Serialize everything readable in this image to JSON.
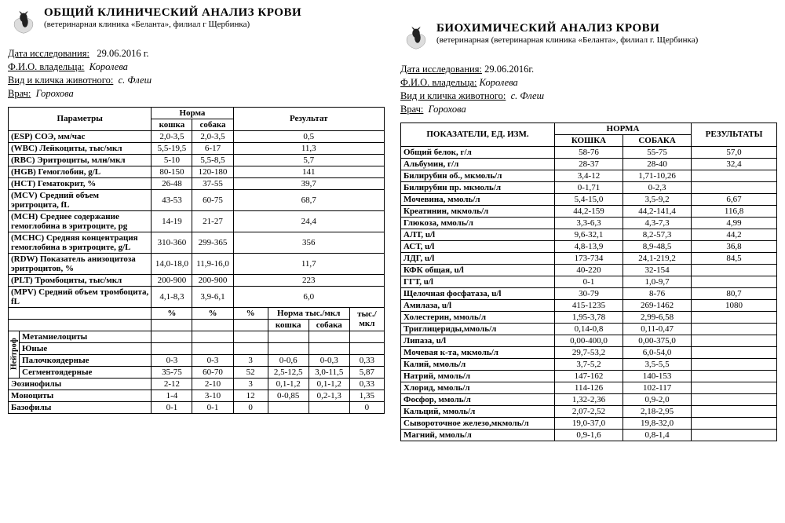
{
  "left": {
    "title": "ОБЩИЙ  КЛИНИЧЕСКИЙ  АНАЛИЗ  КРОВИ",
    "subtitle": "(ветеринарная клиника «Беланта», филиал г Щербинка)",
    "meta": {
      "date_label": "Дата исследования:",
      "date_value": "29.06.2016 г.",
      "owner_label": "Ф.И.О. владельца:",
      "owner_value": "Королева",
      "animal_label": "Вид и кличка животного:",
      "animal_value": "с. Флеш",
      "doctor_label": "Врач:",
      "doctor_value": "Горохова"
    },
    "headers": {
      "params": "Параметры",
      "norm": "Норма",
      "cat": "кошка",
      "dog": "собака",
      "result": "Результат",
      "pct": "%",
      "norm_t": "Норма тыс./мкл",
      "t_mkl": "тыс./мкл"
    },
    "rows": [
      {
        "p": "(ESP) СОЭ, мм/час",
        "c": "2,0-3,5",
        "d": "2,0-3,5",
        "r": "0,5"
      },
      {
        "p": "(WBC) Лейкоциты, тыс/мкл",
        "c": "5,5-19,5",
        "d": "6-17",
        "r": "11,3"
      },
      {
        "p": "(RBC) Эритроциты, млн/мкл",
        "c": "5-10",
        "d": "5,5-8,5",
        "r": "5,7"
      },
      {
        "p": "(HGB) Гемоглобин, g/L",
        "c": "80-150",
        "d": "120-180",
        "r": "141"
      },
      {
        "p": "(HCT) Гематокрит, %",
        "c": "26-48",
        "d": "37-55",
        "r": "39,7"
      },
      {
        "p": "(MCV) Средний объем эритроцита, fL",
        "c": "43-53",
        "d": "60-75",
        "r": "68,7"
      },
      {
        "p": "(MCH) Среднее содержание гемоглобина в эритроците, pg",
        "c": "14-19",
        "d": "21-27",
        "r": "24,4"
      },
      {
        "p": "(MCHC) Средняя концентрация гемоглобина в эритроците, g/L",
        "c": "310-360",
        "d": "299-365",
        "r": "356"
      },
      {
        "p": "(RDW) Показатель анизоцитоза эритроцитов, %",
        "c": "14,0-18,0",
        "d": "11,9-16,0",
        "r": "11,7"
      },
      {
        "p": "(PLT) Тромбоциты, тыс/мкл",
        "c": "200-900",
        "d": "200-900",
        "r": "223"
      },
      {
        "p": "(MPV) Средний объем тромбоцита, fL",
        "c": "4,1-8,3",
        "d": "3,9-6,1",
        "r": "6,0"
      }
    ],
    "neutro_label": "Нейтроф",
    "diff_rows": [
      {
        "p": "Метамиелоциты",
        "c": "",
        "d": "",
        "pct": "",
        "nc": "",
        "nd": "",
        "t": ""
      },
      {
        "p": "Юные",
        "c": "",
        "d": "",
        "pct": "",
        "nc": "",
        "nd": "",
        "t": ""
      },
      {
        "p": "Палочкоядерные",
        "c": "0-3",
        "d": "0-3",
        "pct": "3",
        "nc": "0-0,6",
        "nd": "0-0,3",
        "t": "0,33"
      },
      {
        "p": "Сегментоядерные",
        "c": "35-75",
        "d": "60-70",
        "pct": "52",
        "nc": "2,5-12,5",
        "nd": "3,0-11,5",
        "t": "5,87"
      }
    ],
    "extra_rows": [
      {
        "p": "Эозинофилы",
        "c": "2-12",
        "d": "2-10",
        "pct": "3",
        "nc": "0,1-1,2",
        "nd": "0,1-1,2",
        "t": "0,33"
      },
      {
        "p": "Моноциты",
        "c": "1-4",
        "d": "3-10",
        "pct": "12",
        "nc": "0-0,85",
        "nd": "0,2-1,3",
        "t": "1,35"
      },
      {
        "p": "Базофилы",
        "c": "0-1",
        "d": "0-1",
        "pct": "0",
        "nc": "",
        "nd": "",
        "t": "0"
      }
    ]
  },
  "right": {
    "title": "БИОХИМИЧЕСКИЙ  АНАЛИЗ  КРОВИ",
    "subtitle": "(ветеринарная (ветеринарная клиника «Беланта», филиал г. Щербинка)",
    "meta": {
      "date_label": "Дата исследования:",
      "date_value": "29.06.2016г.",
      "owner_label": "Ф.И.О. владельца:",
      "owner_value": "Королева",
      "animal_label": "Вид и кличка животного:",
      "animal_value": "с. Флеш",
      "doctor_label": "Врач:",
      "doctor_value": "Горохова"
    },
    "headers": {
      "params": "ПОКАЗАТЕЛИ, ЕД. ИЗМ.",
      "norm": "НОРМА",
      "cat": "КОШКА",
      "dog": "СОБАКА",
      "result": "РЕЗУЛЬТАТЫ"
    },
    "rows": [
      {
        "p": "Общий белок, г/л",
        "c": "58-76",
        "d": "55-75",
        "r": "57,0"
      },
      {
        "p": "Альбумин, г/л",
        "c": "28-37",
        "d": "28-40",
        "r": "32,4"
      },
      {
        "p": "Билирубин об., мкмоль/л",
        "c": "3,4-12",
        "d": "1,71-10,26",
        "r": ""
      },
      {
        "p": "Билирубин пр. мкмоль/л",
        "c": "0-1,71",
        "d": "0-2,3",
        "r": ""
      },
      {
        "p": "Мочевина, ммоль/л",
        "c": "5,4-15,0",
        "d": "3,5-9,2",
        "r": "6,67"
      },
      {
        "p": "Креатинин, мкмоль/л",
        "c": "44,2-159",
        "d": "44,2-141,4",
        "r": "116,8"
      },
      {
        "p": "Глюкоза, ммоль/л",
        "c": "3,3-6,3",
        "d": "4,3-7,3",
        "r": "4,99"
      },
      {
        "p": "АЛТ, u/l",
        "c": "9,6-32,1",
        "d": "8,2-57,3",
        "r": "44,2"
      },
      {
        "p": "АСТ, u/l",
        "c": "4,8-13,9",
        "d": "8,9-48,5",
        "r": "36,8"
      },
      {
        "p": "ЛДГ, u/l",
        "c": "173-734",
        "d": "24,1-219,2",
        "r": "84,5"
      },
      {
        "p": "КФК общая, u/l",
        "c": "40-220",
        "d": "32-154",
        "r": ""
      },
      {
        "p": "ГГТ, u/l",
        "c": "0-1",
        "d": "1,0-9,7",
        "r": ""
      },
      {
        "p": "Щелочная фосфатаза, u/l",
        "c": "30-79",
        "d": "8-76",
        "r": "80,7"
      },
      {
        "p": "Амилаза, u/l",
        "c": "415-1235",
        "d": "269-1462",
        "r": "1080"
      },
      {
        "p": "Холестерин, ммоль/л",
        "c": "1,95-3,78",
        "d": "2,99-6,58",
        "r": ""
      },
      {
        "p": "Триглицериды,ммоль/л",
        "c": "0,14-0,8",
        "d": "0,11-0,47",
        "r": ""
      },
      {
        "p": "Липаза, u/l",
        "c": "0,00-400,0",
        "d": "0,00-375,0",
        "r": ""
      },
      {
        "p": "Мочевая к-та, мкмоль/л",
        "c": "29,7-53,2",
        "d": "6,0-54,0",
        "r": ""
      },
      {
        "p": "Калий, ммоль/л",
        "c": "3,7-5,2",
        "d": "3,5-5,5",
        "r": ""
      },
      {
        "p": "Натрий, ммоль/л",
        "c": "147-162",
        "d": "140-153",
        "r": ""
      },
      {
        "p": "Хлорид, ммоль/л",
        "c": "114-126",
        "d": "102-117",
        "r": ""
      },
      {
        "p": "Фосфор, ммоль/л",
        "c": "1,32-2,36",
        "d": "0,9-2,0",
        "r": ""
      },
      {
        "p": "Кальций, ммоль/л",
        "c": "2,07-2,52",
        "d": "2,18-2,95",
        "r": ""
      },
      {
        "p": "Сывороточное железо,мкмоль/л",
        "c": "19,0-37,0",
        "d": "19,8-32,0",
        "r": ""
      },
      {
        "p": "Магний, ммоль/л",
        "c": "0,9-1,6",
        "d": "0,8-1,4",
        "r": ""
      }
    ]
  }
}
